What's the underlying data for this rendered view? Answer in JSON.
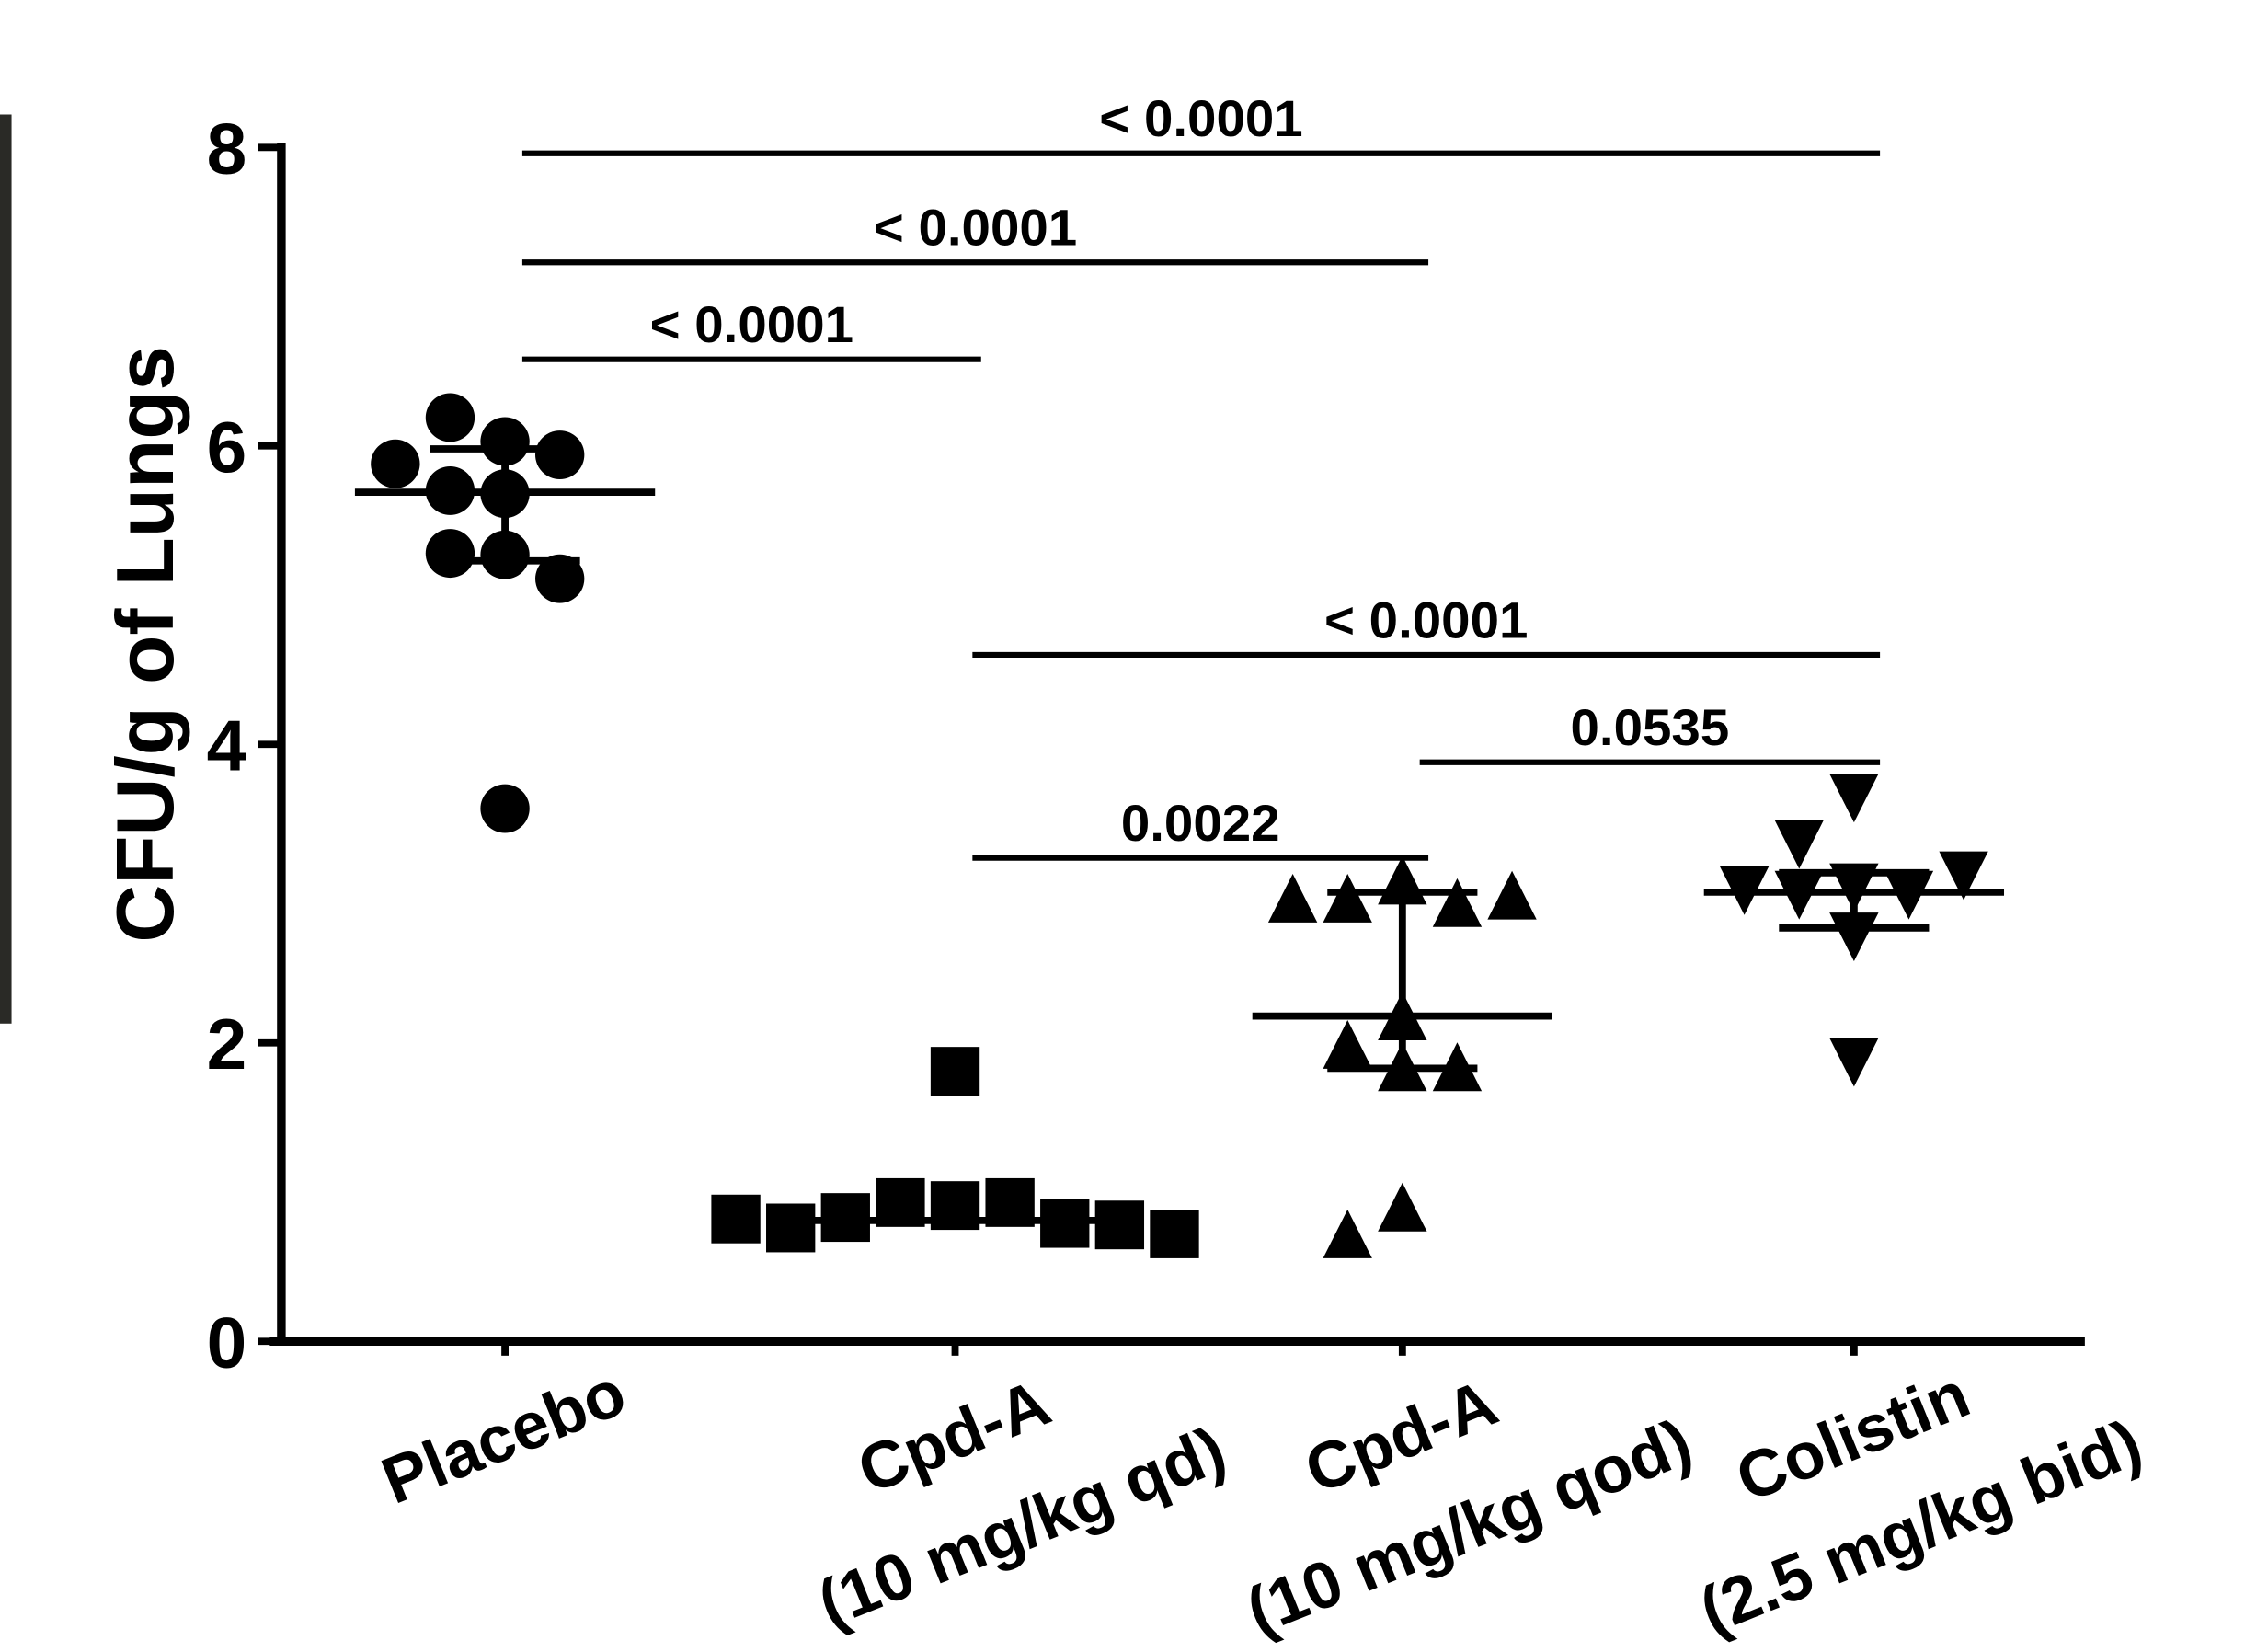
{
  "chart_data": {
    "type": "dot",
    "y_label": "CFU/g of Lungs",
    "categories": [
      "Placebo",
      "Cpd-A",
      "Cpd-A",
      "Colistin"
    ],
    "category_sublabels": [
      null,
      "(10 mg/kg qd)",
      "(10 mg/kg qod)",
      "(2.5 mg/kg bid)"
    ],
    "ylim": [
      0,
      8
    ],
    "yticks": [
      0,
      2,
      4,
      6,
      8
    ],
    "color": "#000000",
    "groups": [
      {
        "marker": "circle",
        "values": [
          6.03,
          6.19,
          5.94,
          5.88,
          5.68,
          5.7,
          5.27,
          5.28,
          5.11,
          3.57
        ],
        "center": 5.69,
        "lower": 5.23,
        "upper": 5.98
      },
      {
        "marker": "square",
        "values": [
          1.81,
          0.91,
          0.93,
          0.93,
          0.83,
          0.79,
          0.76,
          0.78,
          0.82,
          0.72
        ],
        "center": 0.81
      },
      {
        "marker": "triangle",
        "values": [
          3.09,
          2.97,
          2.94,
          2.97,
          2.99,
          2.18,
          1.99,
          1.84,
          1.84,
          0.9,
          0.72
        ],
        "center": 2.18,
        "lower": 1.83,
        "upper": 3.01
      },
      {
        "marker": "triangle-down",
        "values": [
          3.64,
          3.33,
          3.04,
          2.99,
          2.99,
          3.02,
          3.12,
          2.71,
          1.87
        ],
        "center": 3.01,
        "lower": 2.77,
        "upper": 3.14
      }
    ],
    "comparisons": [
      {
        "from": 0,
        "to": 1,
        "y": 6.58,
        "label": "< 0.0001"
      },
      {
        "from": 0,
        "to": 2,
        "y": 7.23,
        "label": "< 0.0001"
      },
      {
        "from": 0,
        "to": 3,
        "y": 7.96,
        "label": "< 0.0001"
      },
      {
        "from": 1,
        "to": 3,
        "y": 4.6,
        "label": "< 0.0001"
      },
      {
        "from": 2,
        "to": 3,
        "y": 3.88,
        "label": "0.0535"
      },
      {
        "from": 1,
        "to": 2,
        "y": 3.24,
        "label": "0.0022"
      }
    ]
  }
}
